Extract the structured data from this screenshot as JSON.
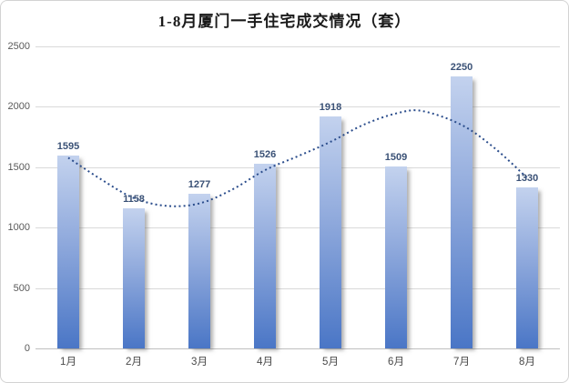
{
  "chart_data": {
    "type": "bar",
    "title": "1-8月厦门一手住宅成交情况（套）",
    "categories": [
      "1月",
      "2月",
      "3月",
      "4月",
      "5月",
      "6月",
      "7月",
      "8月"
    ],
    "values": [
      1595,
      1158,
      1277,
      1526,
      1918,
      1509,
      2250,
      1330
    ],
    "xlabel": "",
    "ylabel": "",
    "ylim": [
      0,
      2500
    ],
    "yticks": [
      0,
      500,
      1000,
      1500,
      2000,
      2500
    ],
    "grid": true,
    "legend": "none",
    "data_labels": [
      "1595",
      "1158",
      "1277",
      "1526",
      "1918",
      "1509",
      "2250",
      "1330"
    ],
    "trendline": {
      "style": "dotted",
      "points": [
        [
          0,
          1578
        ],
        [
          0.5,
          1400
        ],
        [
          1,
          1245
        ],
        [
          1.5,
          1180
        ],
        [
          2,
          1200
        ],
        [
          2.5,
          1315
        ],
        [
          3,
          1475
        ],
        [
          3.5,
          1590
        ],
        [
          4,
          1710
        ],
        [
          4.5,
          1850
        ],
        [
          5,
          1945
        ],
        [
          5.4,
          1965
        ],
        [
          6,
          1850
        ],
        [
          6.5,
          1660
        ],
        [
          7,
          1412
        ]
      ]
    },
    "colors": {
      "bar_top": "#c3d2ee",
      "bar_bottom": "#4a76c6",
      "trendline": "#2b4d8c",
      "gridline": "#d9d9d9",
      "axis_line": "#bfbfbf",
      "value_label": "#3a5176",
      "tick_label": "#595959",
      "month_label": "#4a4a4a",
      "title": "#1a1a1a"
    }
  }
}
